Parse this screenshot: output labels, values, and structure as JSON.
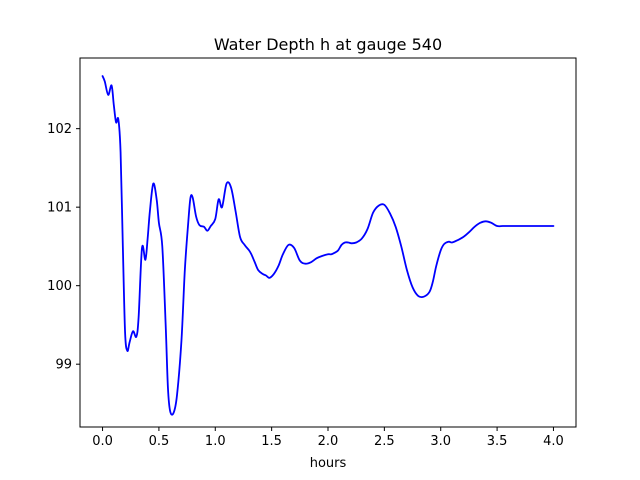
{
  "chart_data": {
    "type": "line",
    "title": "Water Depth h at gauge 540",
    "xlabel": "hours",
    "ylabel": "",
    "xlim": [
      -0.2,
      4.2
    ],
    "ylim": [
      98.2,
      102.9
    ],
    "x_ticks": [
      "0.0",
      "0.5",
      "1.0",
      "1.5",
      "2.0",
      "2.5",
      "3.0",
      "3.5",
      "4.0"
    ],
    "x_tick_values": [
      0.0,
      0.5,
      1.0,
      1.5,
      2.0,
      2.5,
      3.0,
      3.5,
      4.0
    ],
    "y_ticks": [
      "99",
      "100",
      "101",
      "102"
    ],
    "y_tick_values": [
      99,
      100,
      101,
      102
    ],
    "grid": false,
    "series": [
      {
        "color": "#0000ff",
        "x": [
          0.0,
          0.02,
          0.05,
          0.08,
          0.1,
          0.12,
          0.14,
          0.16,
          0.18,
          0.2,
          0.22,
          0.24,
          0.27,
          0.3,
          0.32,
          0.35,
          0.38,
          0.4,
          0.42,
          0.45,
          0.48,
          0.5,
          0.53,
          0.56,
          0.58,
          0.6,
          0.63,
          0.66,
          0.7,
          0.73,
          0.76,
          0.78,
          0.8,
          0.83,
          0.86,
          0.9,
          0.93,
          0.96,
          1.0,
          1.03,
          1.06,
          1.1,
          1.14,
          1.18,
          1.22,
          1.26,
          1.3,
          1.32,
          1.35,
          1.38,
          1.42,
          1.45,
          1.48,
          1.52,
          1.56,
          1.6,
          1.65,
          1.7,
          1.75,
          1.8,
          1.85,
          1.9,
          1.95,
          2.0,
          2.03,
          2.06,
          2.09,
          2.12,
          2.15,
          2.18,
          2.21,
          2.25,
          2.3,
          2.35,
          2.4,
          2.45,
          2.5,
          2.55,
          2.6,
          2.65,
          2.7,
          2.75,
          2.8,
          2.85,
          2.9,
          2.93,
          2.96,
          3.0,
          3.03,
          3.07,
          3.1,
          3.15,
          3.2,
          3.25,
          3.3,
          3.35,
          3.4,
          3.45,
          3.5,
          3.55,
          3.6,
          3.65,
          3.7,
          3.75,
          3.8,
          3.85,
          3.9,
          3.95,
          4.0
        ],
        "y": [
          102.67,
          102.6,
          102.43,
          102.55,
          102.3,
          102.08,
          102.12,
          101.7,
          100.5,
          99.4,
          99.17,
          99.28,
          99.42,
          99.35,
          99.6,
          100.48,
          100.33,
          100.6,
          100.95,
          101.3,
          101.1,
          100.8,
          100.5,
          99.5,
          98.7,
          98.4,
          98.38,
          98.6,
          99.3,
          100.2,
          100.8,
          101.12,
          101.12,
          100.88,
          100.77,
          100.75,
          100.7,
          100.76,
          100.85,
          101.1,
          101.0,
          101.3,
          101.25,
          100.95,
          100.62,
          100.52,
          100.45,
          100.4,
          100.3,
          100.2,
          100.15,
          100.13,
          100.1,
          100.15,
          100.25,
          100.4,
          100.52,
          100.48,
          100.32,
          100.28,
          100.3,
          100.35,
          100.38,
          100.4,
          100.4,
          100.42,
          100.45,
          100.52,
          100.55,
          100.55,
          100.54,
          100.55,
          100.6,
          100.72,
          100.93,
          101.02,
          101.03,
          100.92,
          100.75,
          100.5,
          100.2,
          99.98,
          99.87,
          99.86,
          99.92,
          100.05,
          100.25,
          100.45,
          100.53,
          100.56,
          100.55,
          100.58,
          100.62,
          100.68,
          100.75,
          100.8,
          100.82,
          100.8,
          100.76,
          100.76,
          100.76,
          100.76,
          100.76,
          100.76,
          100.76,
          100.76,
          100.76,
          100.76,
          100.76
        ]
      }
    ]
  }
}
